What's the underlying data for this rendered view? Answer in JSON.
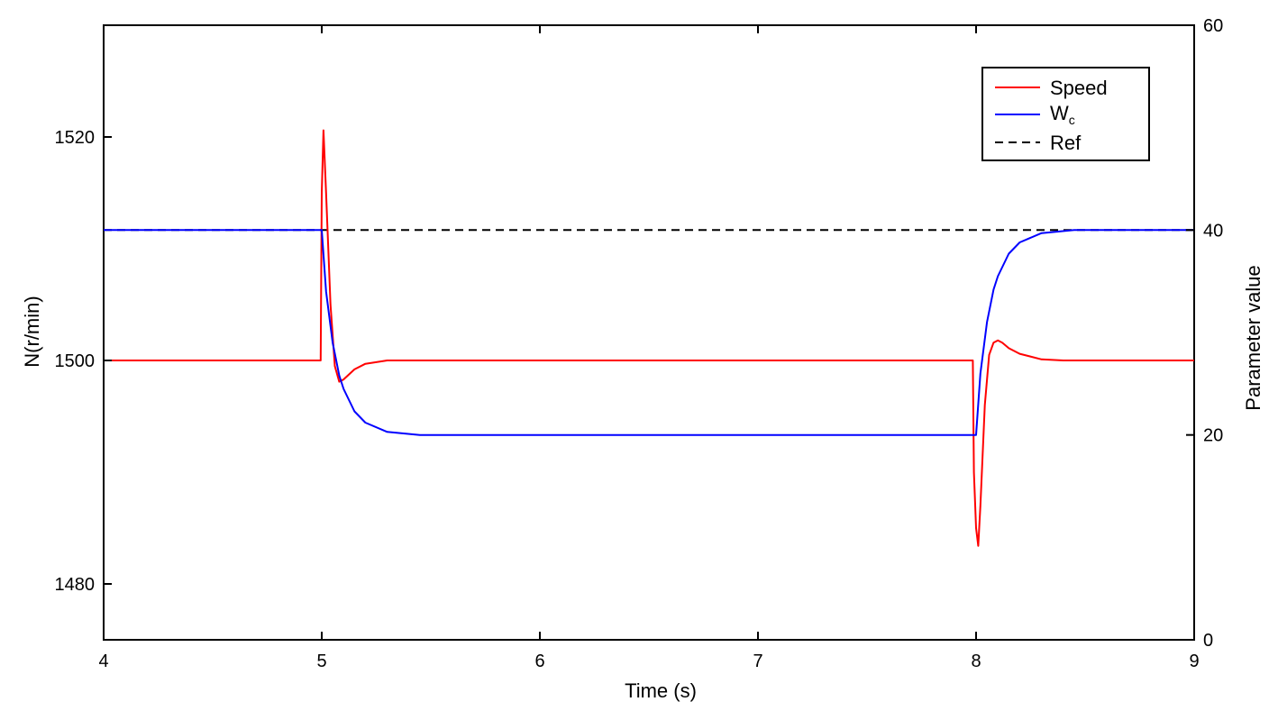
{
  "chart_data": {
    "type": "line",
    "xlabel": "Time (s)",
    "ylabel_left": "N(r/min)",
    "ylabel_right": "Parameter value",
    "xlim": [
      4,
      9
    ],
    "ylim_left": [
      1475,
      1530
    ],
    "ylim_right": [
      0,
      60
    ],
    "xticks": [
      "4",
      "5",
      "6",
      "7",
      "8",
      "9"
    ],
    "yticks_left": [
      "1480",
      "1500",
      "1520"
    ],
    "yticks_right": [
      "0",
      "20",
      "40",
      "60"
    ],
    "grid": false,
    "legend_position": "top-right",
    "legend": [
      {
        "label": "Speed",
        "color": "#ff0000",
        "style": "solid"
      },
      {
        "label": "W",
        "sub": "c",
        "color": "#0000ff",
        "style": "solid"
      },
      {
        "label": "Ref",
        "color": "#000000",
        "style": "dashed"
      }
    ],
    "series": [
      {
        "name": "Speed",
        "axis": "left",
        "color": "#ff0000",
        "x": [
          4.0,
          4.99,
          4.995,
          5.0,
          5.008,
          5.02,
          5.04,
          5.06,
          5.08,
          5.1,
          5.15,
          5.2,
          5.3,
          5.4,
          5.5,
          6.0,
          7.0,
          7.98,
          7.985,
          7.99,
          8.0,
          8.01,
          8.02,
          8.04,
          8.06,
          8.08,
          8.1,
          8.12,
          8.15,
          8.2,
          8.3,
          8.4,
          8.6,
          9.0
        ],
        "y": [
          1500,
          1500,
          1500,
          1515,
          1520.6,
          1515,
          1505,
          1499.5,
          1498.1,
          1498.3,
          1499.2,
          1499.7,
          1500,
          1500,
          1500,
          1500,
          1500,
          1500,
          1500,
          1490,
          1485,
          1483.4,
          1487,
          1496,
          1500.5,
          1501.6,
          1501.8,
          1501.6,
          1501.1,
          1500.6,
          1500.1,
          1500,
          1500,
          1500
        ]
      },
      {
        "name": "Wc",
        "axis": "right",
        "color": "#0000ff",
        "x": [
          4.0,
          4.995,
          5.0,
          5.02,
          5.05,
          5.08,
          5.1,
          5.15,
          5.2,
          5.3,
          5.45,
          6.0,
          7.0,
          7.995,
          8.0,
          8.02,
          8.05,
          8.08,
          8.1,
          8.15,
          8.2,
          8.3,
          8.45,
          9.0
        ],
        "y": [
          40,
          40,
          40,
          34,
          29,
          25.8,
          24.5,
          22.3,
          21.2,
          20.3,
          20,
          20,
          20,
          20,
          20,
          26,
          31,
          34.2,
          35.5,
          37.7,
          38.8,
          39.7,
          40,
          40
        ]
      },
      {
        "name": "Ref",
        "axis": "right",
        "color": "#000000",
        "dashed": true,
        "x": [
          4.0,
          9.0
        ],
        "y": [
          40,
          40
        ]
      }
    ]
  }
}
